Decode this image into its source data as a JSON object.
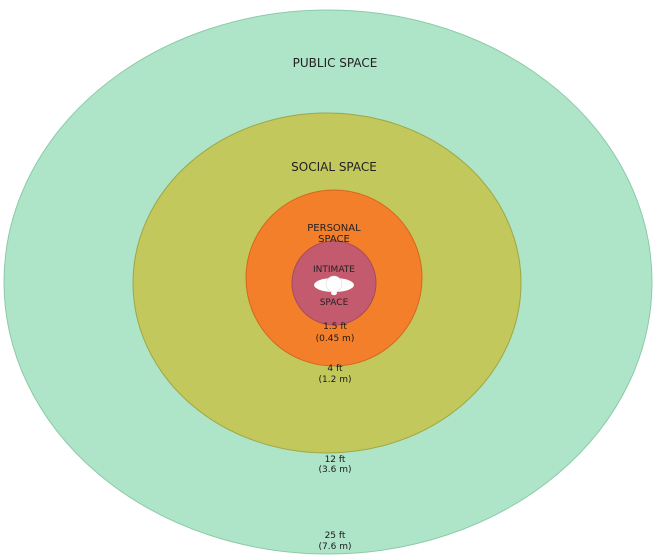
{
  "zones": {
    "public": {
      "label": "PUBLIC SPACE",
      "color": "#aee5c8",
      "distance_ft": "25 ft",
      "distance_m": "(7.6 m)"
    },
    "social": {
      "label": "SOCIAL SPACE",
      "color": "#c2c85c",
      "distance_ft": "12 ft",
      "distance_m": "(3.6 m)"
    },
    "personal": {
      "label_line1": "PERSONAL",
      "label_line2": "SPACE",
      "color": "#f47f2a",
      "distance_ft": "4 ft",
      "distance_m": "(1.2 m)"
    },
    "intimate": {
      "label_line1": "INTIMATE",
      "label_line2": "SPACE",
      "color": "#c45a6e",
      "distance_ft": "1.5 ft",
      "distance_m": "(0.45 m)"
    }
  },
  "center_icon": "person-top-view-icon"
}
